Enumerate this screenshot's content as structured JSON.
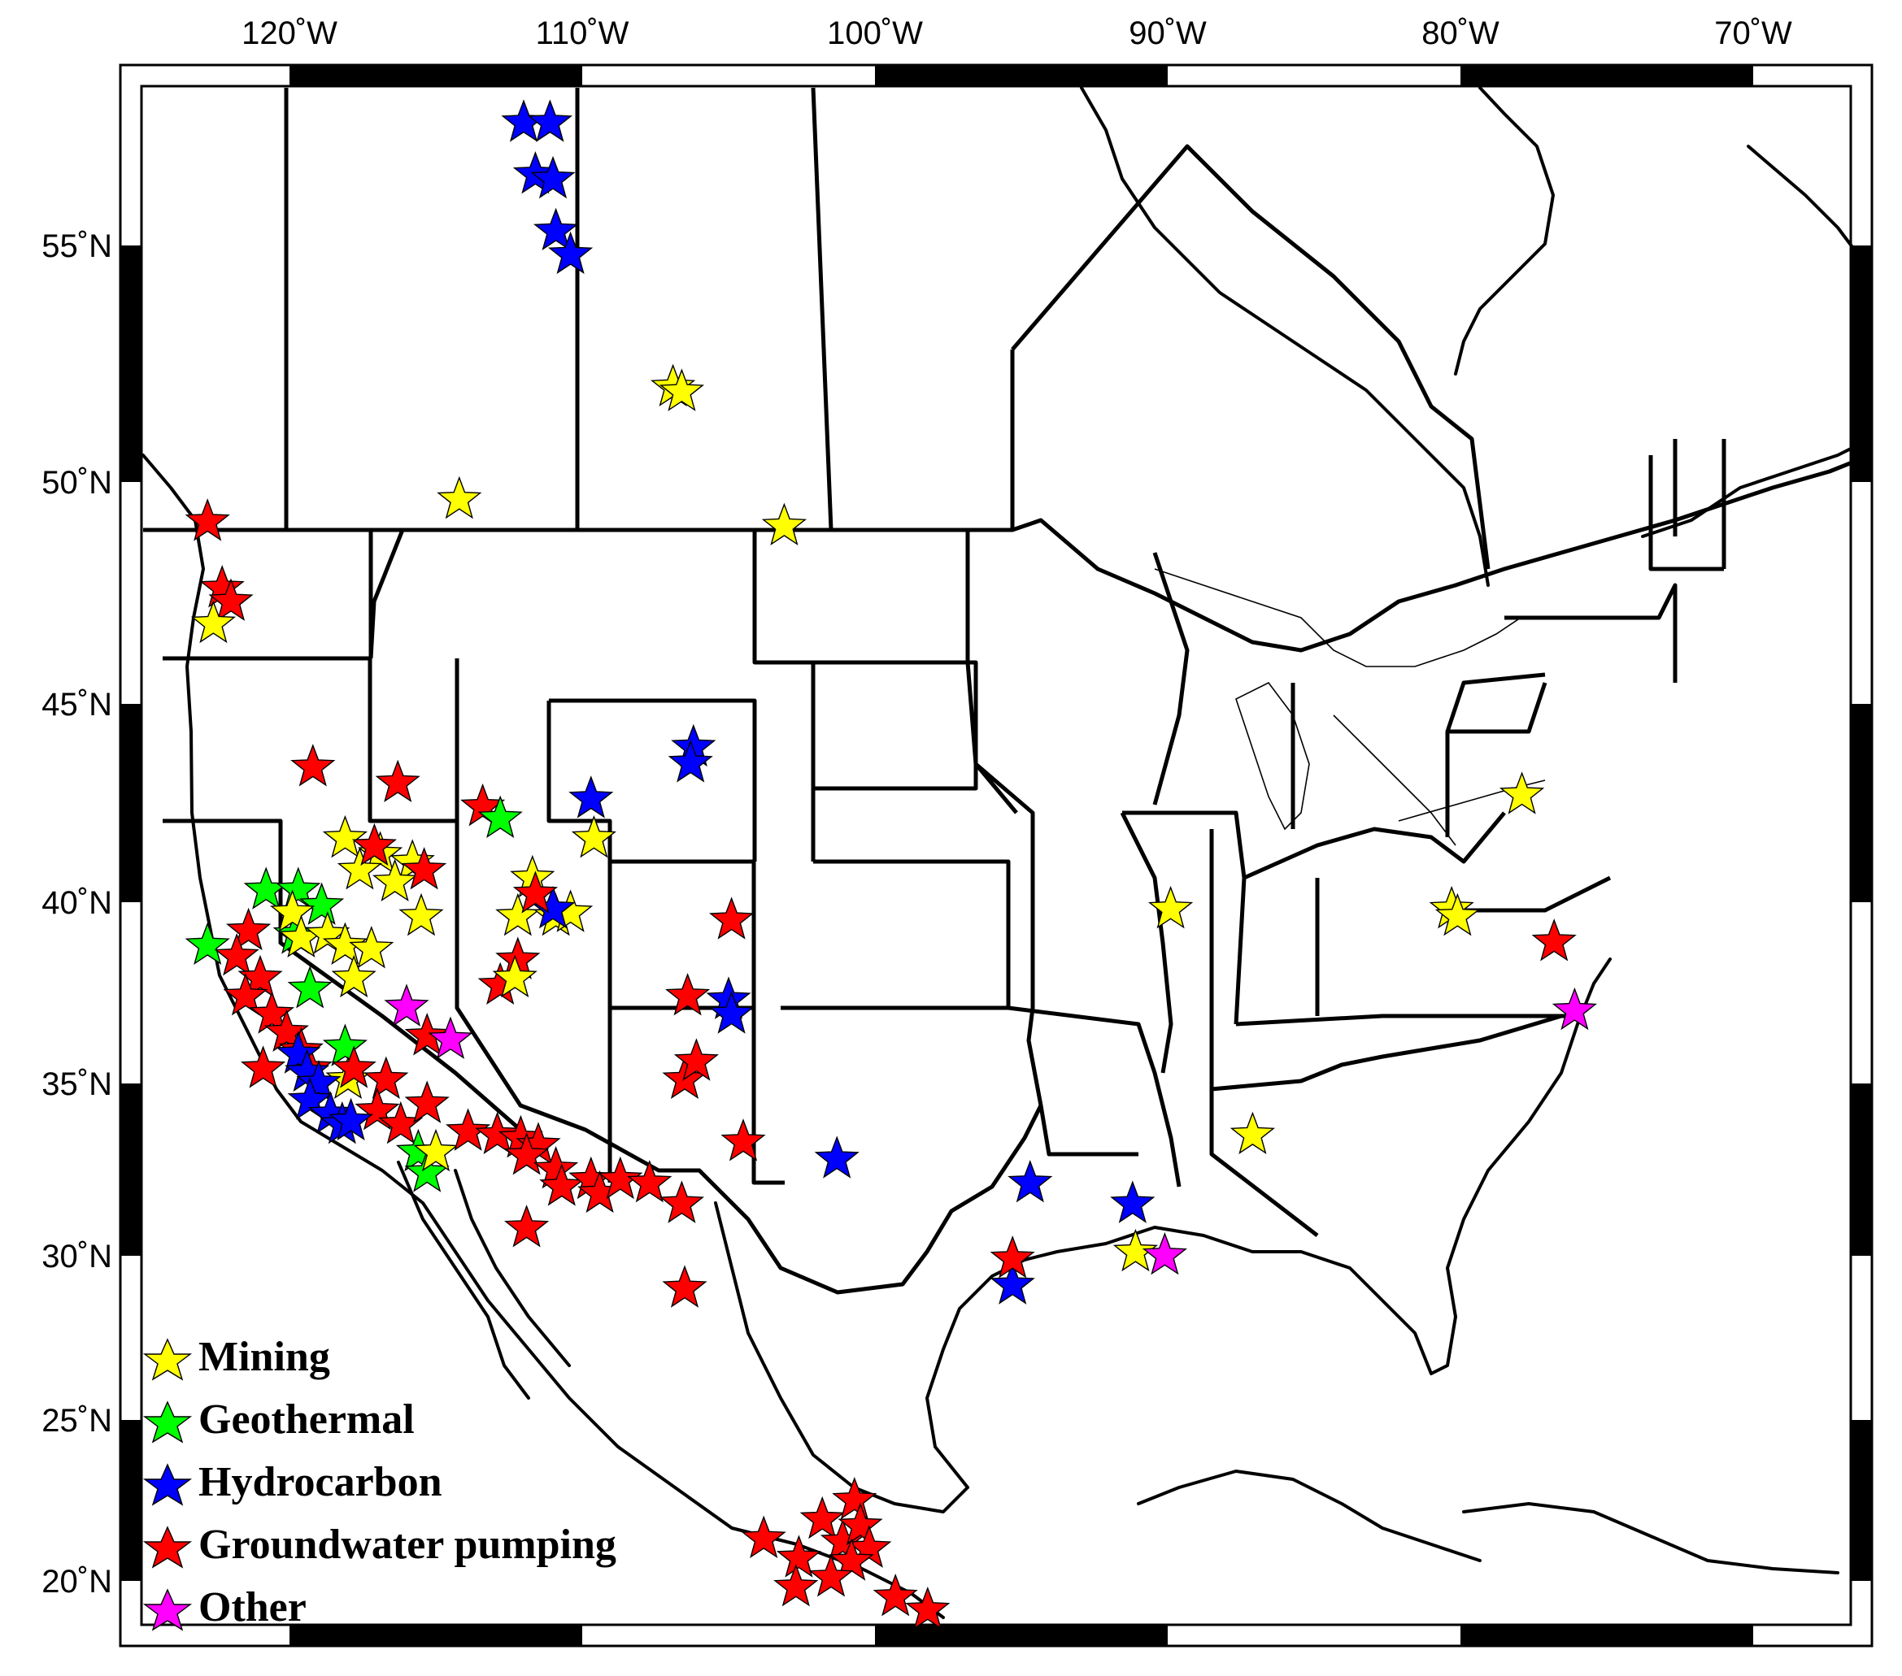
{
  "map": {
    "axes": {
      "longitude_ticks": [
        {
          "lon": -120,
          "label": "120˚W"
        },
        {
          "lon": -110,
          "label": "110˚W"
        },
        {
          "lon": -100,
          "label": "100˚W"
        },
        {
          "lon": -90,
          "label": "90˚W"
        },
        {
          "lon": -80,
          "label": "80˚W"
        },
        {
          "lon": -70,
          "label": "70˚W"
        }
      ],
      "latitude_ticks": [
        {
          "lat": 55,
          "label": "55˚N"
        },
        {
          "lat": 50,
          "label": "50˚N"
        },
        {
          "lat": 45,
          "label": "45˚N"
        },
        {
          "lat": 40,
          "label": "40˚N"
        },
        {
          "lat": 35,
          "label": "35˚N"
        },
        {
          "lat": 30,
          "label": "30˚N"
        },
        {
          "lat": 25,
          "label": "25˚N"
        },
        {
          "lat": 20,
          "label": "20˚N"
        }
      ]
    },
    "categories": [
      {
        "key": "mining",
        "label": "Mining",
        "color": "#FFFF00"
      },
      {
        "key": "geothermal",
        "label": "Geothermal",
        "color": "#00FF00"
      },
      {
        "key": "hydrocarbon",
        "label": "Hydrocarbon",
        "color": "#0000FF"
      },
      {
        "key": "groundwater",
        "label": "Groundwater pumping",
        "color": "#FF0000"
      },
      {
        "key": "other",
        "label": "Other",
        "color": "#FF00FF"
      }
    ],
    "markers": [
      {
        "cat": "hydrocarbon",
        "lon": -112.0,
        "lat": 57.6
      },
      {
        "cat": "hydrocarbon",
        "lon": -111.1,
        "lat": 57.6
      },
      {
        "cat": "hydrocarbon",
        "lon": -111.6,
        "lat": 56.5
      },
      {
        "cat": "hydrocarbon",
        "lon": -111.0,
        "lat": 56.4
      },
      {
        "cat": "hydrocarbon",
        "lon": -110.9,
        "lat": 55.3
      },
      {
        "cat": "hydrocarbon",
        "lon": -110.4,
        "lat": 54.8
      },
      {
        "cat": "mining",
        "lon": -106.9,
        "lat": 52.0
      },
      {
        "cat": "mining",
        "lon": -106.6,
        "lat": 51.9
      },
      {
        "cat": "mining",
        "lon": -114.2,
        "lat": 49.6
      },
      {
        "cat": "mining",
        "lon": -103.1,
        "lat": 49.0
      },
      {
        "cat": "groundwater",
        "lon": -122.8,
        "lat": 49.1
      },
      {
        "cat": "groundwater",
        "lon": -122.3,
        "lat": 47.6
      },
      {
        "cat": "groundwater",
        "lon": -122.0,
        "lat": 47.3
      },
      {
        "cat": "mining",
        "lon": -122.6,
        "lat": 46.8
      },
      {
        "cat": "hydrocarbon",
        "lon": -106.2,
        "lat": 43.9
      },
      {
        "cat": "hydrocarbon",
        "lon": -106.3,
        "lat": 43.5
      },
      {
        "cat": "hydrocarbon",
        "lon": -109.7,
        "lat": 42.6
      },
      {
        "cat": "mining",
        "lon": -109.6,
        "lat": 41.6
      },
      {
        "cat": "groundwater",
        "lon": -119.2,
        "lat": 43.4
      },
      {
        "cat": "groundwater",
        "lon": -116.3,
        "lat": 43.0
      },
      {
        "cat": "groundwater",
        "lon": -113.4,
        "lat": 42.4
      },
      {
        "cat": "geothermal",
        "lon": -112.8,
        "lat": 42.1
      },
      {
        "cat": "mining",
        "lon": -118.1,
        "lat": 41.6
      },
      {
        "cat": "mining",
        "lon": -116.9,
        "lat": 41.2
      },
      {
        "cat": "mining",
        "lon": -115.8,
        "lat": 41.0
      },
      {
        "cat": "mining",
        "lon": -117.6,
        "lat": 40.8
      },
      {
        "cat": "mining",
        "lon": -116.4,
        "lat": 40.5
      },
      {
        "cat": "mining",
        "lon": -115.5,
        "lat": 39.6
      },
      {
        "cat": "groundwater",
        "lon": -115.4,
        "lat": 40.8
      },
      {
        "cat": "groundwater",
        "lon": -117.1,
        "lat": 41.4
      },
      {
        "cat": "mining",
        "lon": -111.7,
        "lat": 40.6
      },
      {
        "cat": "mining",
        "lon": -112.2,
        "lat": 39.6
      },
      {
        "cat": "mining",
        "lon": -110.9,
        "lat": 39.6
      },
      {
        "cat": "mining",
        "lon": -110.4,
        "lat": 39.7
      },
      {
        "cat": "hydrocarbon",
        "lon": -111.0,
        "lat": 39.8
      },
      {
        "cat": "groundwater",
        "lon": -111.6,
        "lat": 40.2
      },
      {
        "cat": "groundwater",
        "lon": -112.2,
        "lat": 38.4
      },
      {
        "cat": "groundwater",
        "lon": -112.8,
        "lat": 37.7
      },
      {
        "cat": "mining",
        "lon": -112.3,
        "lat": 37.9
      },
      {
        "cat": "geothermal",
        "lon": -120.8,
        "lat": 40.3
      },
      {
        "cat": "geothermal",
        "lon": -119.7,
        "lat": 40.3
      },
      {
        "cat": "geothermal",
        "lon": -118.9,
        "lat": 39.9
      },
      {
        "cat": "geothermal",
        "lon": -119.8,
        "lat": 39.1
      },
      {
        "cat": "geothermal",
        "lon": -122.8,
        "lat": 38.8
      },
      {
        "cat": "geothermal",
        "lon": -119.3,
        "lat": 37.6
      },
      {
        "cat": "geothermal",
        "lon": -118.1,
        "lat": 36.0
      },
      {
        "cat": "geothermal",
        "lon": -115.6,
        "lat": 33.0
      },
      {
        "cat": "geothermal",
        "lon": -115.3,
        "lat": 32.4
      },
      {
        "cat": "mining",
        "lon": -119.9,
        "lat": 39.7
      },
      {
        "cat": "mining",
        "lon": -119.6,
        "lat": 39.0
      },
      {
        "cat": "mining",
        "lon": -118.7,
        "lat": 39.1
      },
      {
        "cat": "mining",
        "lon": -118.1,
        "lat": 38.8
      },
      {
        "cat": "mining",
        "lon": -117.2,
        "lat": 38.7
      },
      {
        "cat": "mining",
        "lon": -117.8,
        "lat": 37.9
      },
      {
        "cat": "mining",
        "lon": -118.0,
        "lat": 35.1
      },
      {
        "cat": "mining",
        "lon": -115.0,
        "lat": 33.0
      },
      {
        "cat": "groundwater",
        "lon": -121.4,
        "lat": 39.2
      },
      {
        "cat": "groundwater",
        "lon": -121.8,
        "lat": 38.5
      },
      {
        "cat": "groundwater",
        "lon": -121.0,
        "lat": 37.9
      },
      {
        "cat": "groundwater",
        "lon": -121.5,
        "lat": 37.4
      },
      {
        "cat": "groundwater",
        "lon": -120.6,
        "lat": 36.9
      },
      {
        "cat": "groundwater",
        "lon": -120.1,
        "lat": 36.4
      },
      {
        "cat": "groundwater",
        "lon": -119.6,
        "lat": 35.9
      },
      {
        "cat": "groundwater",
        "lon": -119.3,
        "lat": 35.4
      },
      {
        "cat": "groundwater",
        "lon": -120.9,
        "lat": 35.4
      },
      {
        "cat": "groundwater",
        "lon": -117.8,
        "lat": 35.4
      },
      {
        "cat": "groundwater",
        "lon": -116.7,
        "lat": 35.1
      },
      {
        "cat": "groundwater",
        "lon": -115.3,
        "lat": 36.3
      },
      {
        "cat": "groundwater",
        "lon": -117.0,
        "lat": 34.2
      },
      {
        "cat": "groundwater",
        "lon": -116.2,
        "lat": 33.8
      },
      {
        "cat": "groundwater",
        "lon": -115.3,
        "lat": 34.4
      },
      {
        "cat": "groundwater",
        "lon": -113.9,
        "lat": 33.6
      },
      {
        "cat": "groundwater",
        "lon": -112.9,
        "lat": 33.5
      },
      {
        "cat": "groundwater",
        "lon": -112.1,
        "lat": 33.4
      },
      {
        "cat": "groundwater",
        "lon": -111.5,
        "lat": 33.2
      },
      {
        "cat": "groundwater",
        "lon": -111.9,
        "lat": 32.9
      },
      {
        "cat": "groundwater",
        "lon": -110.9,
        "lat": 32.5
      },
      {
        "cat": "groundwater",
        "lon": -110.7,
        "lat": 32.0
      },
      {
        "cat": "groundwater",
        "lon": -109.7,
        "lat": 32.2
      },
      {
        "cat": "groundwater",
        "lon": -109.4,
        "lat": 31.8
      },
      {
        "cat": "groundwater",
        "lon": -108.7,
        "lat": 32.2
      },
      {
        "cat": "groundwater",
        "lon": -107.7,
        "lat": 32.1
      },
      {
        "cat": "groundwater",
        "lon": -106.6,
        "lat": 31.5
      },
      {
        "cat": "groundwater",
        "lon": -111.9,
        "lat": 30.8
      },
      {
        "cat": "groundwater",
        "lon": -106.5,
        "lat": 35.1
      },
      {
        "cat": "groundwater",
        "lon": -106.1,
        "lat": 35.6
      },
      {
        "cat": "groundwater",
        "lon": -106.4,
        "lat": 37.4
      },
      {
        "cat": "groundwater",
        "lon": -104.9,
        "lat": 39.5
      },
      {
        "cat": "groundwater",
        "lon": -104.5,
        "lat": 33.3
      },
      {
        "cat": "groundwater",
        "lon": -106.5,
        "lat": 29.0
      },
      {
        "cat": "hydrocarbon",
        "lon": -105.0,
        "lat": 37.3
      },
      {
        "cat": "hydrocarbon",
        "lon": -104.9,
        "lat": 36.9
      },
      {
        "cat": "hydrocarbon",
        "lon": -119.7,
        "lat": 35.8
      },
      {
        "cat": "hydrocarbon",
        "lon": -119.4,
        "lat": 35.3
      },
      {
        "cat": "hydrocarbon",
        "lon": -119.0,
        "lat": 35.0
      },
      {
        "cat": "hydrocarbon",
        "lon": -119.3,
        "lat": 34.5
      },
      {
        "cat": "hydrocarbon",
        "lon": -118.6,
        "lat": 34.1
      },
      {
        "cat": "hydrocarbon",
        "lon": -118.2,
        "lat": 33.8
      },
      {
        "cat": "hydrocarbon",
        "lon": -117.9,
        "lat": 33.9
      },
      {
        "cat": "hydrocarbon",
        "lon": -101.3,
        "lat": 32.8
      },
      {
        "cat": "hydrocarbon",
        "lon": -94.7,
        "lat": 32.1
      },
      {
        "cat": "hydrocarbon",
        "lon": -91.2,
        "lat": 31.5
      },
      {
        "cat": "hydrocarbon",
        "lon": -95.3,
        "lat": 29.1
      },
      {
        "cat": "groundwater",
        "lon": -95.3,
        "lat": 29.9
      },
      {
        "cat": "mining",
        "lon": -91.1,
        "lat": 30.1
      },
      {
        "cat": "other",
        "lon": -90.1,
        "lat": 30.0
      },
      {
        "cat": "other",
        "lon": -116.0,
        "lat": 37.1
      },
      {
        "cat": "other",
        "lon": -114.5,
        "lat": 36.2
      },
      {
        "cat": "mining",
        "lon": -89.9,
        "lat": 39.8
      },
      {
        "cat": "mining",
        "lon": -87.1,
        "lat": 33.5
      },
      {
        "cat": "mining",
        "lon": -80.3,
        "lat": 39.8
      },
      {
        "cat": "mining",
        "lon": -80.1,
        "lat": 39.6
      },
      {
        "cat": "mining",
        "lon": -77.9,
        "lat": 42.7
      },
      {
        "cat": "groundwater",
        "lon": -76.8,
        "lat": 38.9
      },
      {
        "cat": "other",
        "lon": -76.1,
        "lat": 37.0
      },
      {
        "cat": "groundwater",
        "lon": -103.8,
        "lat": 21.3
      },
      {
        "cat": "groundwater",
        "lon": -102.6,
        "lat": 20.7
      },
      {
        "cat": "groundwater",
        "lon": -101.8,
        "lat": 21.9
      },
      {
        "cat": "groundwater",
        "lon": -101.1,
        "lat": 21.2
      },
      {
        "cat": "groundwater",
        "lon": -100.7,
        "lat": 22.5
      },
      {
        "cat": "groundwater",
        "lon": -100.5,
        "lat": 21.7
      },
      {
        "cat": "groundwater",
        "lon": -100.2,
        "lat": 21.0
      },
      {
        "cat": "groundwater",
        "lon": -100.8,
        "lat": 20.6
      },
      {
        "cat": "groundwater",
        "lon": -101.5,
        "lat": 20.1
      },
      {
        "cat": "groundwater",
        "lon": -102.7,
        "lat": 19.8
      },
      {
        "cat": "groundwater",
        "lon": -99.3,
        "lat": 19.5
      },
      {
        "cat": "groundwater",
        "lon": -98.2,
        "lat": 19.1
      }
    ],
    "legend": [
      {
        "cat": "mining",
        "label": "Mining"
      },
      {
        "cat": "geothermal",
        "label": "Geothermal"
      },
      {
        "cat": "hydrocarbon",
        "label": "Hydrocarbon"
      },
      {
        "cat": "groundwater",
        "label": "Groundwater pumping"
      },
      {
        "cat": "other",
        "label": "Other"
      }
    ]
  }
}
